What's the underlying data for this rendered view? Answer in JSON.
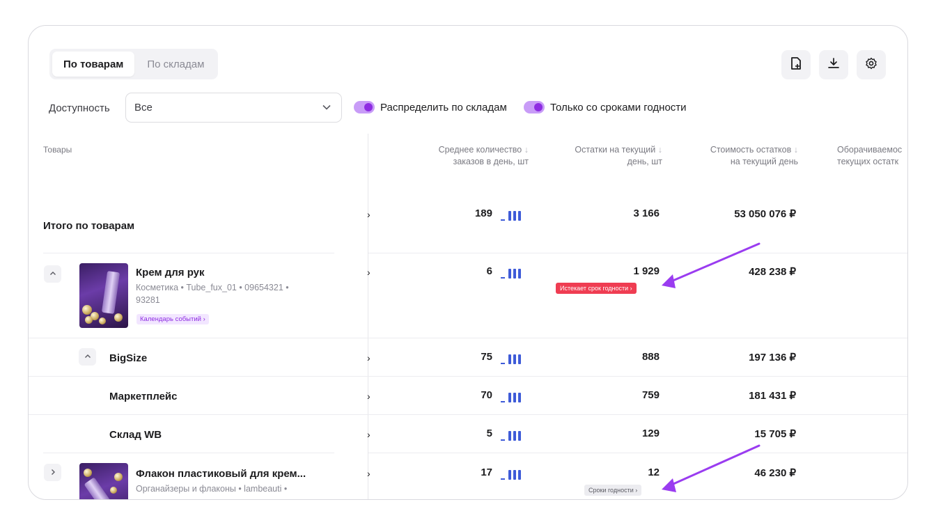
{
  "tabs": [
    {
      "label": "По товарам"
    },
    {
      "label": "По складам"
    }
  ],
  "filters": {
    "availability_label": "Доступность",
    "availability_value": "Все",
    "toggle_distribute": "Распределить по складам",
    "toggle_expiry": "Только со сроками годности"
  },
  "header": {
    "products": "Товары",
    "avg_orders_1": "Среднее количество",
    "avg_orders_2": "заказов в день, шт",
    "stock_1": "Остатки на текущий",
    "stock_2": "день, шт",
    "cost_1": "Стоимость остатков",
    "cost_2": "на текущий день",
    "turnover_1": "Оборачиваемос",
    "turnover_2": "текущих остатк"
  },
  "rows": {
    "total": {
      "title": "Итого по товарам",
      "avg": "189",
      "stock": "3 166",
      "cost": "53 050 076 ₽"
    },
    "cream": {
      "name": "Крем для рук",
      "meta1": "Косметика • Tube_fux_01 • 09654321 •",
      "meta2": "93281",
      "event_badge": "Календарь событий  ›",
      "avg": "6",
      "stock": "1 929",
      "stock_badge": "Истекает срок годности  ›",
      "cost": "428 238 ₽"
    },
    "bigsize": {
      "title": "BigSize",
      "avg": "75",
      "stock": "888",
      "cost": "197 136 ₽"
    },
    "marketplace": {
      "title": "Маркетплейс",
      "avg": "70",
      "stock": "759",
      "cost": "181 431 ₽"
    },
    "wb": {
      "title": "Склад WB",
      "avg": "5",
      "stock": "129",
      "cost": "15 705 ₽"
    },
    "flacon": {
      "name": "Флакон пластиковый для крем...",
      "meta1": "Органайзеры и флаконы • lambeauti •",
      "avg": "17",
      "stock": "12",
      "stock_badge": "Сроки годности  ›",
      "cost": "46 230 ₽"
    }
  },
  "colors": {
    "accent": "#8e2de2",
    "spark": "#3e5bd8",
    "alert": "#ef3d52",
    "arrow": "#9a3cf0"
  }
}
